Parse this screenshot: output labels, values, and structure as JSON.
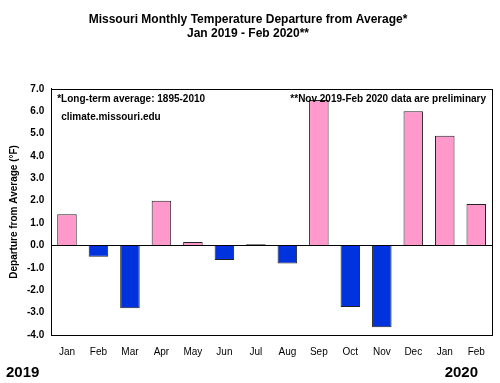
{
  "chart_data": {
    "type": "bar",
    "title": "Missouri Monthly Temperature Departure from Average*",
    "subtitle": "Jan 2019 - Feb 2020**",
    "y_label": "Departure from Average (°F)",
    "annotations": [
      "*Long-term average: 1895-2010",
      "**Nov 2019-Feb 2020 data are preliminary",
      "climate.missouri.edu",
      "2019",
      "2020"
    ],
    "categories": [
      "Jan",
      "Feb",
      "Mar",
      "Apr",
      "May",
      "Jun",
      "Jul",
      "Aug",
      "Sep",
      "Oct",
      "Nov",
      "Dec",
      "Jan",
      "Feb"
    ],
    "values": [
      1.4,
      -0.5,
      -2.8,
      2.0,
      0.15,
      -0.65,
      0.05,
      -0.8,
      6.5,
      -2.75,
      -3.65,
      6.0,
      4.9,
      1.85
    ],
    "colors": [
      "#ff99cc",
      "#0033dd",
      "#0033dd",
      "#ff99cc",
      "#ff99cc",
      "#0033dd",
      "#ff99cc",
      "#0033dd",
      "#ff99cc",
      "#0033dd",
      "#0033dd",
      "#ff99cc",
      "#ff99cc",
      "#ff99cc"
    ],
    "ylim": [
      -4,
      7
    ],
    "yticks": [
      {
        "value": -4,
        "label": "-4.0"
      },
      {
        "value": -3,
        "label": "-3.0"
      },
      {
        "value": -2,
        "label": "-2.0"
      },
      {
        "value": -1,
        "label": "-1.0"
      },
      {
        "value": 0,
        "label": "0.0"
      },
      {
        "value": 1,
        "label": "1.0"
      },
      {
        "value": 2,
        "label": "2.0"
      },
      {
        "value": 3,
        "label": "3.0"
      },
      {
        "value": 4,
        "label": "4.0"
      },
      {
        "value": 5,
        "label": "5.0"
      },
      {
        "value": 6,
        "label": "6.0"
      },
      {
        "value": 7,
        "label": "7.0"
      }
    ],
    "grid": false
  }
}
